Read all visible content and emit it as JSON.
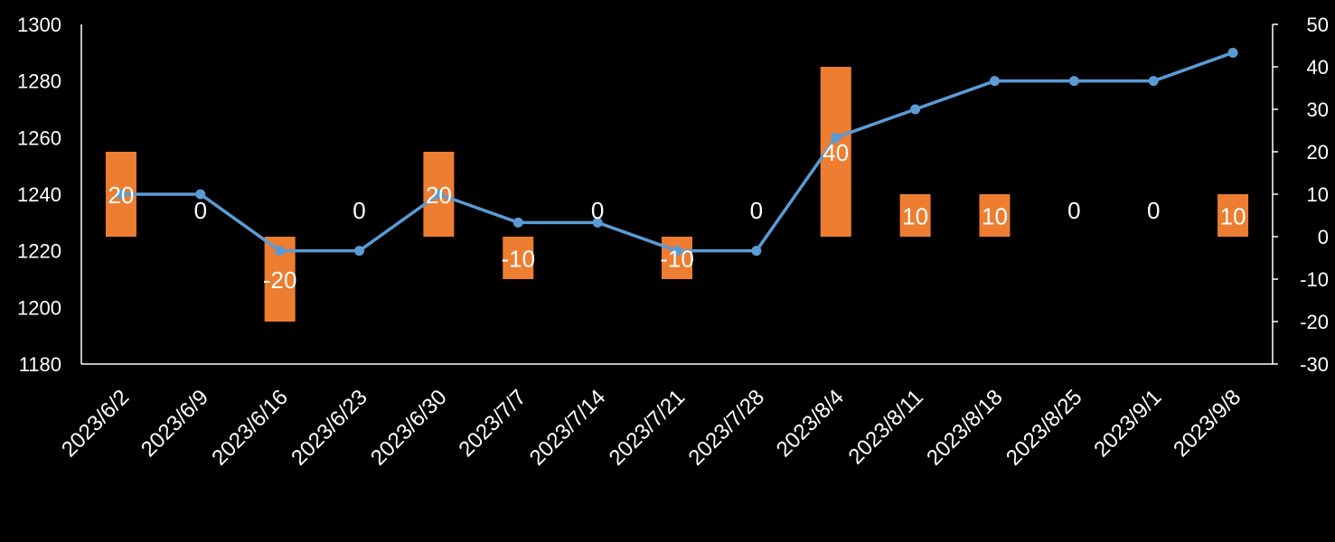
{
  "chart_data": {
    "type": "bar+line",
    "title": "",
    "categories": [
      "2023/6/2",
      "2023/6/9",
      "2023/6/16",
      "2023/6/23",
      "2023/6/30",
      "2023/7/7",
      "2023/7/14",
      "2023/7/21",
      "2023/7/28",
      "2023/8/4",
      "2023/8/11",
      "2023/8/18",
      "2023/8/25",
      "2023/9/1",
      "2023/9/8"
    ],
    "series": [
      {
        "type": "line",
        "axis": "left",
        "color": "#5B9BD5",
        "values": [
          1240,
          1240,
          1220,
          1220,
          1240,
          1230,
          1230,
          1220,
          1220,
          1260,
          1270,
          1280,
          1280,
          1280,
          1290
        ]
      },
      {
        "type": "bar",
        "axis": "right",
        "color": "#ED7D31",
        "values": [
          20,
          0,
          -20,
          0,
          20,
          -10,
          0,
          -10,
          0,
          40,
          10,
          10,
          0,
          0,
          10
        ],
        "data_labels": [
          "20",
          "0",
          "-20",
          "0",
          "20",
          "-10",
          "0",
          "-10",
          "0",
          "40",
          "10",
          "10",
          "0",
          "0",
          "10"
        ]
      }
    ],
    "left_axis": {
      "min": 1180,
      "max": 1300,
      "step": 20,
      "ticks": [
        "1180",
        "1200",
        "1220",
        "1240",
        "1260",
        "1280",
        "1300"
      ]
    },
    "right_axis": {
      "min": -30,
      "max": 50,
      "step": 10,
      "ticks": [
        "-30",
        "-20",
        "-10",
        "0",
        "10",
        "20",
        "30",
        "40",
        "50"
      ]
    },
    "xlabel": "",
    "ylabel": "",
    "grid": false,
    "legend": "none",
    "background": "#000000",
    "axis_color": "#ffffff"
  }
}
